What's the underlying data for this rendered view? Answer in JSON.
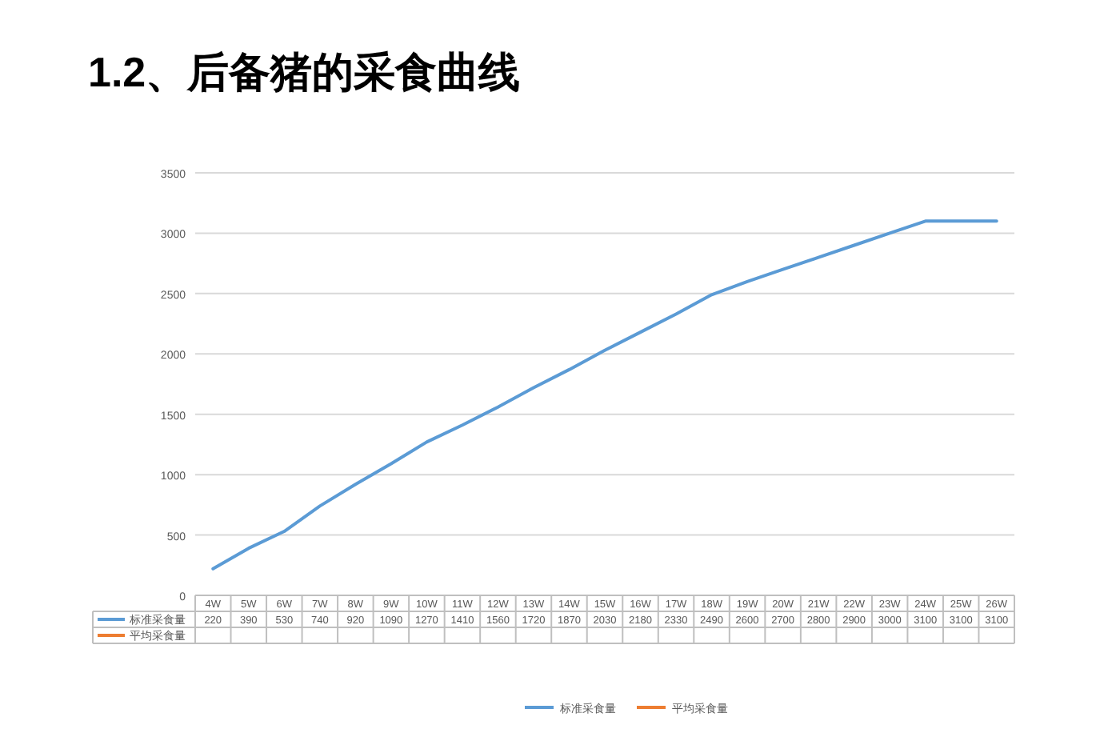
{
  "chart_data": {
    "type": "line",
    "title": "1.2、后备猪的采食曲线",
    "categories": [
      "4W",
      "5W",
      "6W",
      "7W",
      "8W",
      "9W",
      "10W",
      "11W",
      "12W",
      "13W",
      "14W",
      "15W",
      "16W",
      "17W",
      "18W",
      "19W",
      "20W",
      "21W",
      "22W",
      "23W",
      "24W",
      "25W",
      "26W"
    ],
    "series": [
      {
        "name": "标准采食量",
        "color": "#5b9bd5",
        "values": [
          220,
          390,
          530,
          740,
          920,
          1090,
          1270,
          1410,
          1560,
          1720,
          1870,
          2030,
          2180,
          2330,
          2490,
          2600,
          2700,
          2800,
          2900,
          3000,
          3100,
          3100,
          3100
        ]
      },
      {
        "name": "平均采食量",
        "color": "#ed7d31",
        "values": [
          null,
          null,
          null,
          null,
          null,
          null,
          null,
          null,
          null,
          null,
          null,
          null,
          null,
          null,
          null,
          null,
          null,
          null,
          null,
          null,
          null,
          null,
          null
        ]
      }
    ],
    "ylim": [
      0,
      3500
    ],
    "yticks": [
      0,
      500,
      1000,
      1500,
      2000,
      2500,
      3000,
      3500
    ],
    "grid": "y",
    "legend": "bottom",
    "data_labels": true,
    "marker": "none",
    "line_style": "solid"
  }
}
